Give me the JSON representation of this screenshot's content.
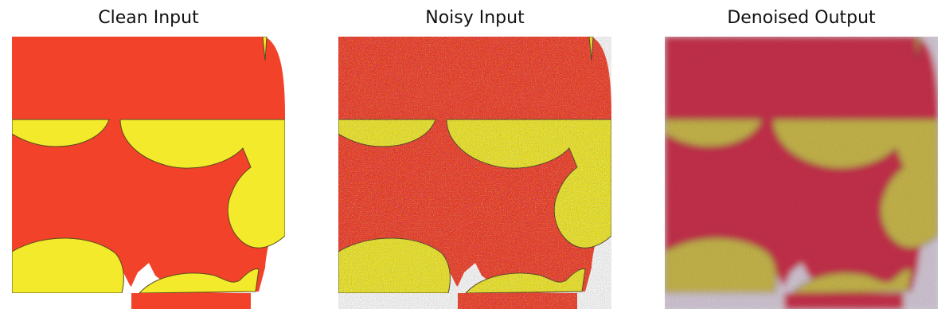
{
  "panels": [
    {
      "title": "Clean Input",
      "variant": "clean"
    },
    {
      "title": "Noisy Input",
      "variant": "noisy"
    },
    {
      "title": "Denoised Output",
      "variant": "denoised"
    }
  ],
  "colors": {
    "red": "#f2432a",
    "yellow": "#f2ea2a",
    "white": "#ffffff",
    "outline": "#5a4a20"
  }
}
